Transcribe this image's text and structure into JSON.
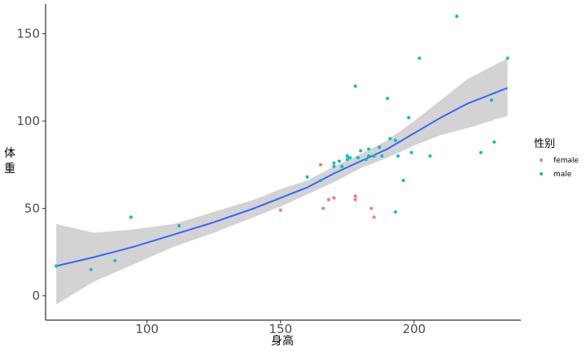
{
  "chart_data": {
    "type": "scatter",
    "xlabel": "身高",
    "ylabel": "体重",
    "xlim": [
      62,
      240
    ],
    "ylim": [
      -14,
      167
    ],
    "xticks": [
      100,
      150,
      200
    ],
    "yticks": [
      0,
      50,
      100,
      150
    ],
    "grid": false,
    "legend": {
      "title": "性别",
      "position": "right",
      "entries": [
        {
          "label": "female",
          "color": "#F8766D"
        },
        {
          "label": "male",
          "color": "#00BFC4"
        }
      ]
    },
    "series": [
      {
        "name": "female",
        "color": "#F8766D",
        "points": [
          [
            150,
            49
          ],
          [
            165,
            75
          ],
          [
            166,
            50
          ],
          [
            168,
            55
          ],
          [
            170,
            56
          ],
          [
            178,
            57
          ],
          [
            178,
            55
          ],
          [
            184,
            50
          ],
          [
            185,
            45
          ]
        ]
      },
      {
        "name": "male",
        "color": "#00BFC4",
        "points": [
          [
            66,
            17
          ],
          [
            79,
            15
          ],
          [
            88,
            20
          ],
          [
            94,
            45
          ],
          [
            112,
            40
          ],
          [
            160,
            68
          ],
          [
            165,
            66
          ],
          [
            170,
            76
          ],
          [
            170,
            74
          ],
          [
            172,
            77
          ],
          [
            173,
            74
          ],
          [
            175,
            80
          ],
          [
            175,
            78
          ],
          [
            176,
            79
          ],
          [
            178,
            120
          ],
          [
            179,
            79
          ],
          [
            180,
            83
          ],
          [
            182,
            78
          ],
          [
            183,
            84
          ],
          [
            183,
            80
          ],
          [
            185,
            80
          ],
          [
            187,
            85
          ],
          [
            188,
            80
          ],
          [
            190,
            113
          ],
          [
            191,
            90
          ],
          [
            193,
            89
          ],
          [
            193,
            48
          ],
          [
            194,
            80
          ],
          [
            196,
            66
          ],
          [
            198,
            102
          ],
          [
            199,
            82
          ],
          [
            202,
            136
          ],
          [
            206,
            80
          ],
          [
            216,
            160
          ],
          [
            225,
            82
          ],
          [
            229,
            112
          ],
          [
            230,
            88
          ],
          [
            235,
            136
          ]
        ]
      }
    ],
    "fit": {
      "method": "loess",
      "color": "#3366FF",
      "band_color": "#D3D3D3",
      "x": [
        66,
        80,
        95,
        110,
        125,
        140,
        150,
        160,
        170,
        180,
        190,
        200,
        210,
        220,
        235
      ],
      "y": [
        17,
        22,
        28,
        35,
        42,
        50,
        56,
        62,
        70,
        77,
        84,
        93,
        102,
        110,
        119
      ],
      "lower": [
        -5,
        8,
        18,
        28,
        36,
        45,
        51,
        58,
        65,
        73,
        79,
        86,
        92,
        96,
        103
      ],
      "upper": [
        41,
        36,
        38,
        41,
        48,
        55,
        61,
        66,
        74,
        81,
        89,
        100,
        112,
        124,
        136
      ]
    }
  }
}
